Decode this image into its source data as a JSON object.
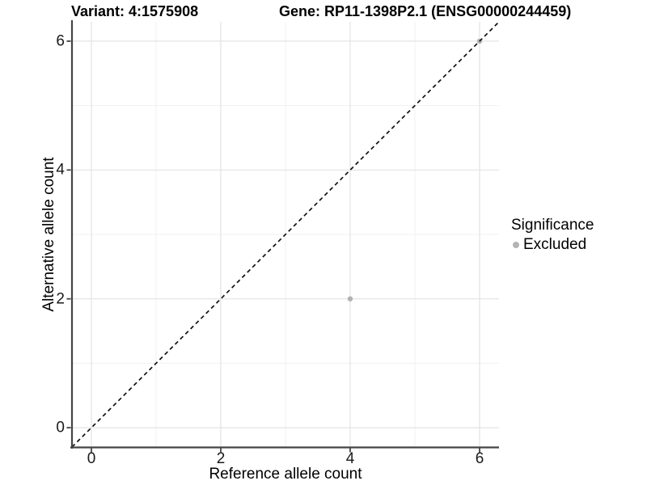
{
  "title": {
    "variant": "Variant: 4:1575908",
    "gene": "Gene: RP11-1398P2.1 (ENSG00000244459)"
  },
  "legend": {
    "title": "Significance",
    "items": [
      {
        "label": "Excluded",
        "color": "#b3b3b3"
      }
    ]
  },
  "colors": {
    "background": "#ffffff",
    "axis_line": "#454545",
    "grid_major": "#e3e3e3",
    "grid_minor": "#f0f0f0",
    "tick_text": "#1a1a1a",
    "identity_line": "#111111",
    "point": "#b3b3b3"
  },
  "chart_data": {
    "type": "scatter",
    "title": "Variant: 4:1575908    Gene: RP11-1398P2.1 (ENSG00000244459)",
    "xlabel": "Reference allele count",
    "ylabel": "Alternative allele count",
    "xlim": [
      -0.3,
      6.3
    ],
    "ylim": [
      -0.3,
      6.3
    ],
    "x_ticks": [
      0,
      2,
      4,
      6
    ],
    "y_ticks": [
      0,
      2,
      4,
      6
    ],
    "x_minor_ticks": [
      1,
      3,
      5
    ],
    "y_minor_ticks": [
      1,
      3,
      5
    ],
    "grid": true,
    "legend_position": "right",
    "identity_line": {
      "style": "dashed",
      "from": [
        -0.3,
        -0.3
      ],
      "to": [
        6.3,
        6.3
      ]
    },
    "series": [
      {
        "name": "Excluded",
        "color": "#b3b3b3",
        "points": [
          [
            4,
            2
          ],
          [
            6,
            6
          ]
        ]
      }
    ]
  }
}
